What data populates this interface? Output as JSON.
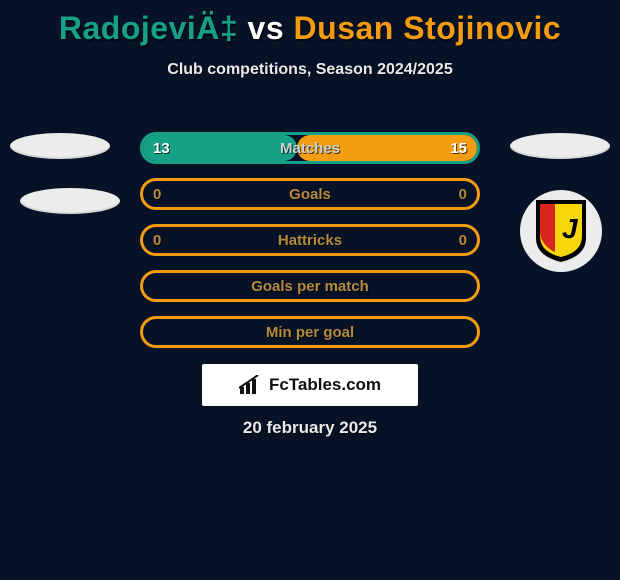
{
  "colors": {
    "bg": "#071227",
    "teal": "#16a085",
    "orange": "#f39c12",
    "white": "#ffffff",
    "text": "#c9d4d0",
    "text_alt": "#b58b3d"
  },
  "title": {
    "player1": "RadojeviÄ‡",
    "vs": "vs",
    "player2": "Dusan Stojinovic"
  },
  "subtitle": "Club competitions, Season 2024/2025",
  "rows": [
    {
      "label": "Matches",
      "left_val": "13",
      "right_val": "15",
      "left_color": "#16a085",
      "right_color": "#f39c12",
      "left_pct": 46,
      "right_pct": 54,
      "border": "teal",
      "label_color": "#c9d4d0",
      "show_vals": true
    },
    {
      "label": "Goals",
      "left_val": "0",
      "right_val": "0",
      "left_color": "#16a085",
      "right_color": "#f39c12",
      "left_pct": 0,
      "right_pct": 0,
      "border": "orange",
      "label_color": "#b58b3d",
      "show_vals": true
    },
    {
      "label": "Hattricks",
      "left_val": "0",
      "right_val": "0",
      "left_color": "#16a085",
      "right_color": "#f39c12",
      "left_pct": 0,
      "right_pct": 0,
      "border": "orange",
      "label_color": "#b58b3d",
      "show_vals": true
    },
    {
      "label": "Goals per match",
      "left_val": "",
      "right_val": "",
      "left_color": "#16a085",
      "right_color": "#f39c12",
      "left_pct": 0,
      "right_pct": 0,
      "border": "orange",
      "label_color": "#b58b3d",
      "show_vals": false
    },
    {
      "label": "Min per goal",
      "left_val": "",
      "right_val": "",
      "left_color": "#16a085",
      "right_color": "#f39c12",
      "left_pct": 0,
      "right_pct": 0,
      "border": "orange",
      "label_color": "#b58b3d",
      "show_vals": false
    }
  ],
  "brand": "FcTables.com",
  "date": "20 february 2025",
  "badge": {
    "shield_bg": "#000000",
    "shield_stripe": "#d7261e",
    "shield_fill": "#f7d70a"
  }
}
